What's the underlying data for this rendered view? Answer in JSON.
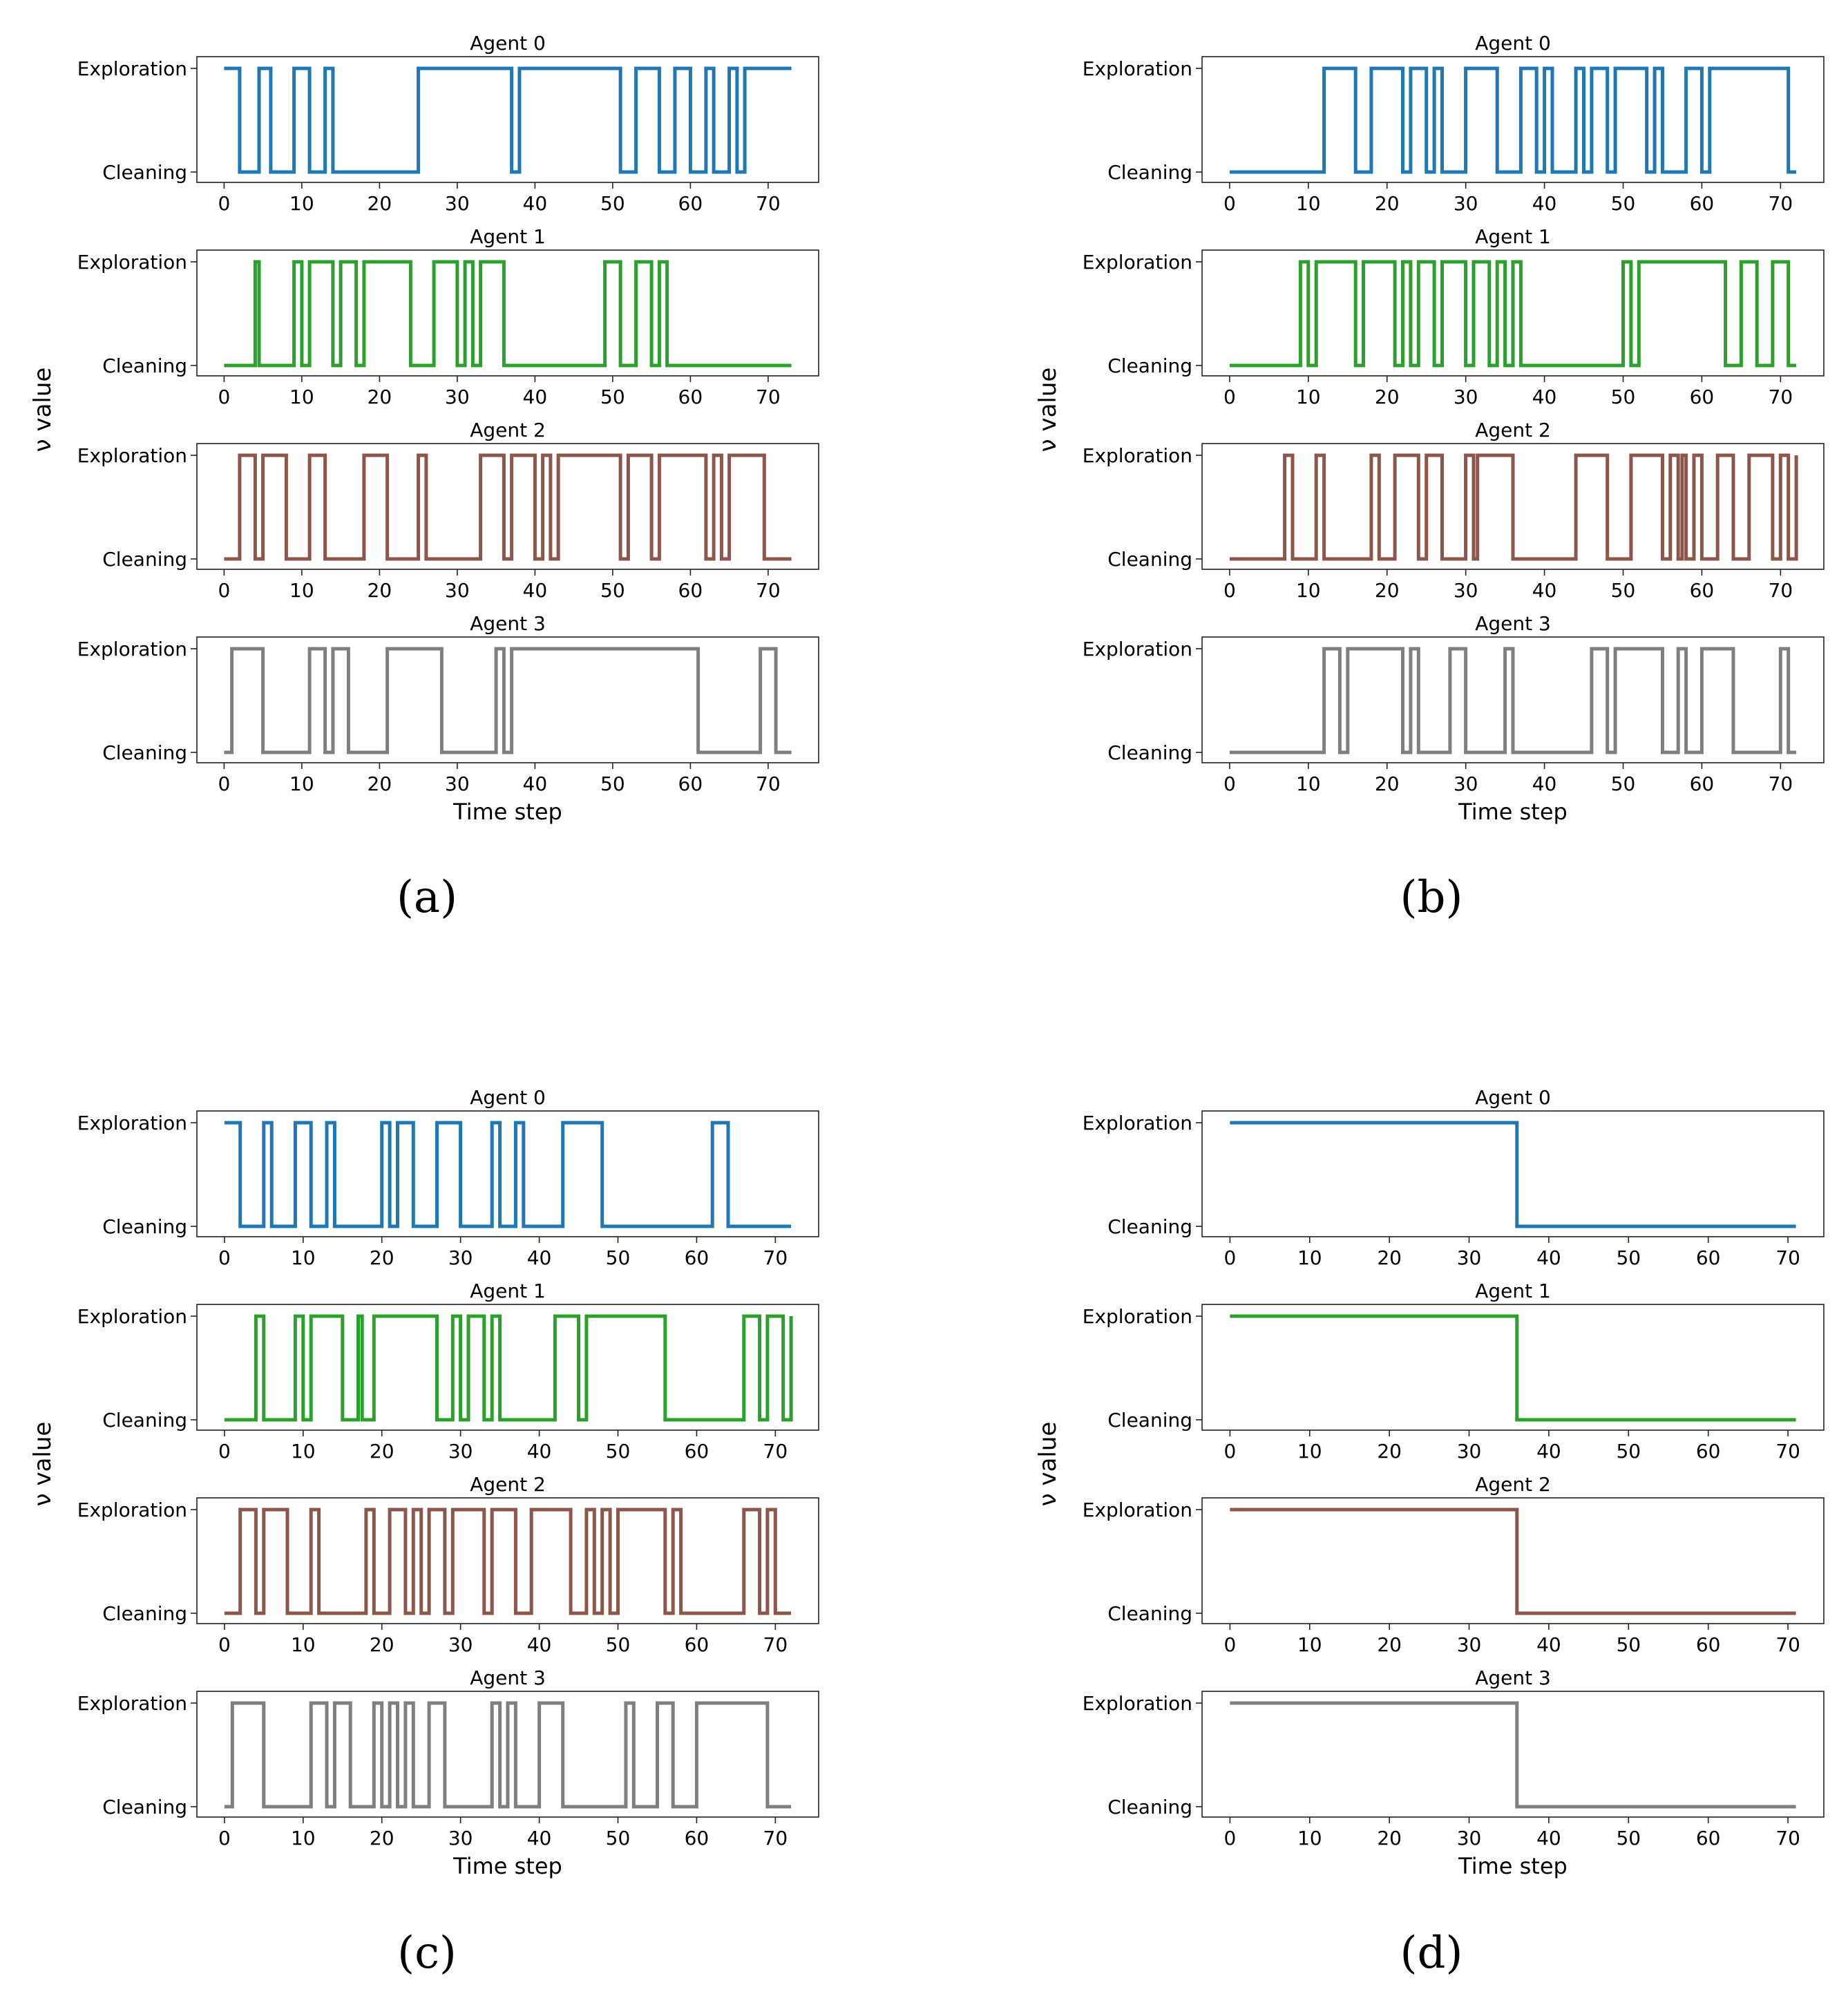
{
  "figure": {
    "panel_labels": [
      "(a)",
      "(b)",
      "(c)",
      "(d)"
    ],
    "ylabel": "ν value",
    "xlabel": "Time step",
    "agent_titles": [
      "Agent 0",
      "Agent 1",
      "Agent 2",
      "Agent 3"
    ],
    "level_labels": {
      "high": "Exploration",
      "low": "Cleaning"
    },
    "series_colors": [
      "#1f77b4",
      "#2ca02c",
      "#8c564b",
      "#7f7f7f"
    ]
  },
  "chart_data": [
    {
      "panel": "(a)",
      "type": "line",
      "step": true,
      "xlabel": "Time step",
      "ylabel": "ν value",
      "xlim": [
        -3.5,
        76.5
      ],
      "xticks": [
        0,
        10,
        20,
        30,
        40,
        50,
        60,
        70
      ],
      "yticks": [
        "Cleaning",
        "Exploration"
      ],
      "series": [
        {
          "name": "Agent 0",
          "color": "#1f77b4",
          "x_start": 0,
          "x_end": 73,
          "initial": 1,
          "switches": [
            2,
            4.5,
            6,
            9,
            11,
            13,
            14,
            25,
            37,
            38,
            51,
            53,
            56,
            58,
            60,
            62,
            63,
            65,
            66,
            67
          ]
        },
        {
          "name": "Agent 1",
          "color": "#2ca02c",
          "x_start": 0,
          "x_end": 73,
          "initial": 0,
          "switches": [
            4,
            4.5,
            9,
            10,
            11,
            14,
            15,
            17,
            18,
            24,
            27,
            30,
            31,
            32,
            33,
            36,
            49,
            51,
            53,
            55,
            56,
            57
          ]
        },
        {
          "name": "Agent 2",
          "color": "#8c564b",
          "x_start": 0,
          "x_end": 73,
          "initial": 0,
          "switches": [
            2,
            4,
            5,
            8,
            11,
            13,
            18,
            21,
            25,
            26,
            33,
            36,
            37,
            40,
            41,
            42,
            43,
            51,
            52,
            55,
            56,
            62,
            63,
            64,
            65,
            69.5
          ]
        },
        {
          "name": "Agent 3",
          "color": "#7f7f7f",
          "x_start": 0,
          "x_end": 73,
          "initial": 0,
          "switches": [
            1,
            5,
            11,
            13,
            14,
            16,
            21,
            28,
            35,
            36,
            37,
            61,
            69,
            71
          ]
        }
      ]
    },
    {
      "panel": "(b)",
      "type": "line",
      "step": true,
      "xlabel": "Time step",
      "ylabel": "ν value",
      "xlim": [
        -3.5,
        75.5
      ],
      "xticks": [
        0,
        10,
        20,
        30,
        40,
        50,
        60,
        70
      ],
      "yticks": [
        "Cleaning",
        "Exploration"
      ],
      "series": [
        {
          "name": "Agent 0",
          "color": "#1f77b4",
          "x_start": 0,
          "x_end": 72,
          "initial": 0,
          "switches": [
            12,
            16,
            18,
            22,
            23,
            25,
            26,
            27,
            30,
            34,
            37,
            39,
            40,
            41,
            44,
            45,
            46,
            48,
            49,
            53,
            54,
            55,
            58,
            60,
            61,
            71
          ]
        },
        {
          "name": "Agent 1",
          "color": "#2ca02c",
          "x_start": 0,
          "x_end": 72,
          "initial": 0,
          "switches": [
            9,
            10,
            11,
            16,
            17,
            21,
            22,
            23,
            24,
            26,
            27,
            30,
            31,
            33,
            34,
            35,
            36,
            37,
            50,
            51,
            52,
            63,
            65,
            67,
            69,
            71
          ]
        },
        {
          "name": "Agent 2",
          "color": "#8c564b",
          "x_start": 0,
          "x_end": 72,
          "initial": 0,
          "switches": [
            7,
            8,
            11,
            12,
            18,
            19,
            21,
            24,
            25,
            27,
            30,
            31,
            31.5,
            36,
            44,
            48,
            51,
            55,
            56,
            57,
            57.5,
            58,
            59,
            60,
            62,
            64,
            66,
            69,
            70,
            71,
            72
          ]
        },
        {
          "name": "Agent 3",
          "color": "#7f7f7f",
          "x_start": 0,
          "x_end": 72,
          "initial": 0,
          "switches": [
            12,
            14,
            15,
            22,
            23,
            24,
            28,
            30,
            35,
            36,
            46,
            48,
            49,
            55,
            57,
            58,
            60,
            64,
            70,
            71
          ]
        }
      ]
    },
    {
      "panel": "(c)",
      "type": "line",
      "step": true,
      "xlabel": "Time step",
      "ylabel": "ν value",
      "xlim": [
        -3.5,
        75.5
      ],
      "xticks": [
        0,
        10,
        20,
        30,
        40,
        50,
        60,
        70
      ],
      "yticks": [
        "Cleaning",
        "Exploration"
      ],
      "series": [
        {
          "name": "Agent 0",
          "color": "#1f77b4",
          "x_start": 0,
          "x_end": 72,
          "initial": 1,
          "switches": [
            2,
            5,
            6,
            9,
            11,
            13,
            14,
            20,
            21,
            22,
            24,
            27,
            30,
            34,
            35,
            37,
            38,
            43,
            48,
            62,
            64
          ]
        },
        {
          "name": "Agent 1",
          "color": "#2ca02c",
          "x_start": 0,
          "x_end": 72,
          "initial": 0,
          "switches": [
            4,
            5,
            9,
            10,
            11,
            15,
            17,
            17.5,
            19,
            27,
            29,
            30,
            31,
            33,
            34,
            35,
            42,
            45,
            46,
            56,
            66,
            68,
            69,
            71,
            72
          ]
        },
        {
          "name": "Agent 2",
          "color": "#8c564b",
          "x_start": 0,
          "x_end": 72,
          "initial": 0,
          "switches": [
            2,
            4,
            5,
            8,
            11,
            12,
            18,
            19,
            21,
            23,
            24,
            25,
            26,
            28,
            29,
            33,
            34,
            37,
            39,
            44,
            46,
            47,
            48,
            49,
            50,
            56,
            57,
            58,
            66,
            68,
            69,
            70
          ]
        },
        {
          "name": "Agent 3",
          "color": "#7f7f7f",
          "x_start": 0,
          "x_end": 72,
          "initial": 0,
          "switches": [
            1,
            5,
            11,
            13,
            14,
            16,
            19,
            20,
            21,
            22,
            23,
            24,
            26,
            28,
            34,
            35,
            36,
            37,
            40,
            43,
            51,
            52,
            55,
            57,
            60,
            69
          ]
        }
      ]
    },
    {
      "panel": "(d)",
      "type": "line",
      "step": true,
      "xlabel": "Time step",
      "ylabel": "ν value",
      "xlim": [
        -3.5,
        74.5
      ],
      "xticks": [
        0,
        10,
        20,
        30,
        40,
        50,
        60,
        70
      ],
      "yticks": [
        "Cleaning",
        "Exploration"
      ],
      "series": [
        {
          "name": "Agent 0",
          "color": "#1f77b4",
          "x_start": 0,
          "x_end": 71,
          "initial": 1,
          "switches": [
            36
          ]
        },
        {
          "name": "Agent 1",
          "color": "#2ca02c",
          "x_start": 0,
          "x_end": 71,
          "initial": 1,
          "switches": [
            36
          ]
        },
        {
          "name": "Agent 2",
          "color": "#8c564b",
          "x_start": 0,
          "x_end": 71,
          "initial": 1,
          "switches": [
            36
          ]
        },
        {
          "name": "Agent 3",
          "color": "#7f7f7f",
          "x_start": 0,
          "x_end": 71,
          "initial": 1,
          "switches": [
            36
          ]
        }
      ]
    }
  ]
}
